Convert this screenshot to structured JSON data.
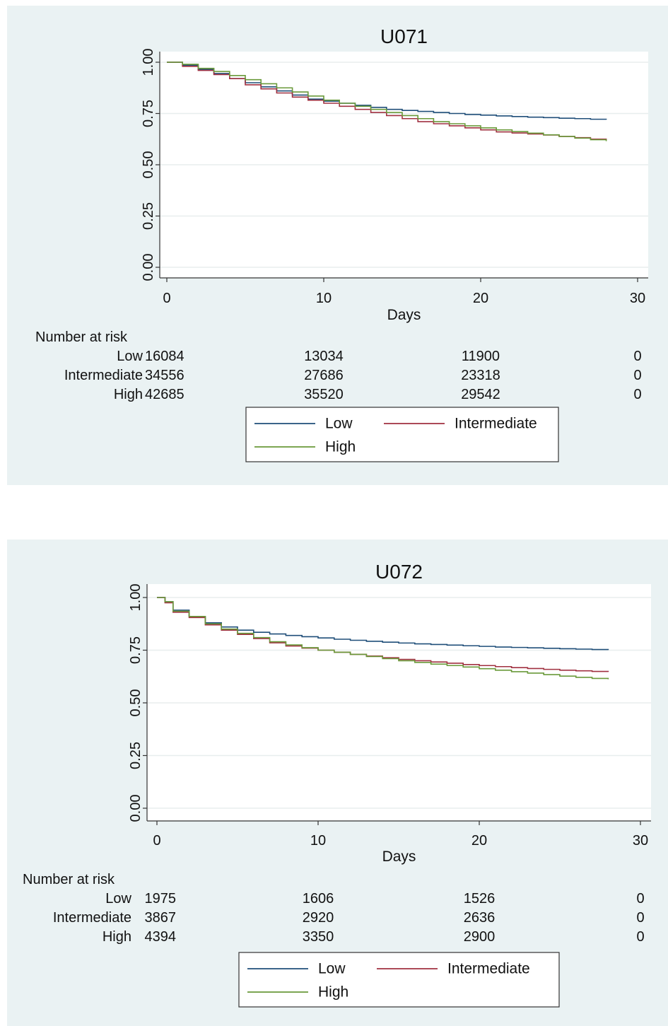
{
  "chart_data": [
    {
      "type": "line",
      "title": "U071",
      "xlabel": "Days",
      "ylabel": "",
      "xlim": [
        0,
        30
      ],
      "ylim": [
        0,
        1
      ],
      "x_ticks": [
        "0",
        "10",
        "20",
        "30"
      ],
      "y_ticks": [
        "0.00",
        "0.25",
        "0.50",
        "0.75",
        "1.00"
      ],
      "grid": true,
      "risk_table": {
        "label": "Number at risk",
        "rows": [
          {
            "name": "Low",
            "values": [
              "16084",
              "13034",
              "11900",
              "0"
            ]
          },
          {
            "name": "Intermediate",
            "values": [
              "34556",
              "27686",
              "23318",
              "0"
            ]
          },
          {
            "name": "High",
            "values": [
              "42685",
              "35520",
              "29542",
              "0"
            ]
          }
        ]
      },
      "legend": {
        "position": "bottom",
        "items": [
          "Low",
          "Intermediate",
          "High"
        ]
      },
      "series": [
        {
          "name": "Low",
          "color": "#1f4e79",
          "x": [
            0,
            1,
            2,
            3,
            4,
            5,
            6,
            7,
            8,
            9,
            10,
            11,
            12,
            13,
            14,
            15,
            16,
            17,
            18,
            19,
            20,
            21,
            22,
            23,
            24,
            25,
            26,
            27,
            28
          ],
          "y": [
            1.0,
            0.985,
            0.965,
            0.945,
            0.92,
            0.9,
            0.88,
            0.86,
            0.84,
            0.82,
            0.81,
            0.8,
            0.79,
            0.78,
            0.77,
            0.765,
            0.76,
            0.755,
            0.75,
            0.745,
            0.742,
            0.738,
            0.735,
            0.732,
            0.73,
            0.727,
            0.725,
            0.722,
            0.72
          ]
        },
        {
          "name": "Intermediate",
          "color": "#a03040",
          "x": [
            0,
            1,
            2,
            3,
            4,
            5,
            6,
            7,
            8,
            9,
            10,
            11,
            12,
            13,
            14,
            15,
            16,
            17,
            18,
            19,
            20,
            21,
            22,
            23,
            24,
            25,
            26,
            27,
            28
          ],
          "y": [
            1.0,
            0.98,
            0.96,
            0.94,
            0.92,
            0.89,
            0.87,
            0.85,
            0.83,
            0.815,
            0.8,
            0.785,
            0.77,
            0.755,
            0.74,
            0.725,
            0.71,
            0.7,
            0.69,
            0.68,
            0.67,
            0.66,
            0.655,
            0.65,
            0.645,
            0.638,
            0.632,
            0.625,
            0.62
          ]
        },
        {
          "name": "High",
          "color": "#6a9a3a",
          "x": [
            0,
            1,
            2,
            3,
            4,
            5,
            6,
            7,
            8,
            9,
            10,
            11,
            12,
            13,
            14,
            15,
            16,
            17,
            18,
            19,
            20,
            21,
            22,
            23,
            24,
            25,
            26,
            27,
            28
          ],
          "y": [
            1.0,
            0.99,
            0.97,
            0.955,
            0.935,
            0.915,
            0.895,
            0.875,
            0.855,
            0.835,
            0.815,
            0.8,
            0.785,
            0.77,
            0.755,
            0.74,
            0.725,
            0.71,
            0.7,
            0.69,
            0.68,
            0.67,
            0.662,
            0.654,
            0.646,
            0.638,
            0.63,
            0.622,
            0.615
          ]
        }
      ]
    },
    {
      "type": "line",
      "title": "U072",
      "xlabel": "Days",
      "ylabel": "",
      "xlim": [
        0,
        30
      ],
      "ylim": [
        0,
        1
      ],
      "x_ticks": [
        "0",
        "10",
        "20",
        "30"
      ],
      "y_ticks": [
        "0.00",
        "0.25",
        "0.50",
        "0.75",
        "1.00"
      ],
      "grid": true,
      "risk_table": {
        "label": "Number at risk",
        "rows": [
          {
            "name": "Low",
            "values": [
              "1975",
              "1606",
              "1526",
              "0"
            ]
          },
          {
            "name": "Intermediate",
            "values": [
              "3867",
              "2920",
              "2636",
              "0"
            ]
          },
          {
            "name": "High",
            "values": [
              "4394",
              "3350",
              "2900",
              "0"
            ]
          }
        ]
      },
      "legend": {
        "position": "bottom",
        "items": [
          "Low",
          "Intermediate",
          "High"
        ]
      },
      "series": [
        {
          "name": "Low",
          "color": "#1f4e79",
          "x": [
            0,
            0.5,
            1,
            2,
            3,
            4,
            5,
            6,
            7,
            8,
            9,
            10,
            11,
            12,
            13,
            14,
            15,
            16,
            17,
            18,
            19,
            20,
            21,
            22,
            23,
            24,
            25,
            26,
            27,
            28
          ],
          "y": [
            1.0,
            0.98,
            0.94,
            0.91,
            0.88,
            0.86,
            0.845,
            0.835,
            0.827,
            0.82,
            0.814,
            0.808,
            0.802,
            0.797,
            0.792,
            0.788,
            0.784,
            0.78,
            0.777,
            0.774,
            0.771,
            0.768,
            0.765,
            0.763,
            0.761,
            0.759,
            0.757,
            0.755,
            0.753,
            0.751
          ]
        },
        {
          "name": "Intermediate",
          "color": "#a03040",
          "x": [
            0,
            0.5,
            1,
            2,
            3,
            4,
            5,
            6,
            7,
            8,
            9,
            10,
            11,
            12,
            13,
            14,
            15,
            16,
            17,
            18,
            19,
            20,
            21,
            22,
            23,
            24,
            25,
            26,
            27,
            28
          ],
          "y": [
            1.0,
            0.975,
            0.93,
            0.905,
            0.87,
            0.845,
            0.825,
            0.805,
            0.785,
            0.77,
            0.76,
            0.75,
            0.74,
            0.73,
            0.722,
            0.714,
            0.706,
            0.7,
            0.694,
            0.688,
            0.682,
            0.677,
            0.672,
            0.667,
            0.663,
            0.659,
            0.655,
            0.652,
            0.649,
            0.647
          ]
        },
        {
          "name": "High",
          "color": "#6a9a3a",
          "x": [
            0,
            0.5,
            1,
            2,
            3,
            4,
            5,
            6,
            7,
            8,
            9,
            10,
            11,
            12,
            13,
            14,
            15,
            16,
            17,
            18,
            19,
            20,
            21,
            22,
            23,
            24,
            25,
            26,
            27,
            28
          ],
          "y": [
            1.0,
            0.98,
            0.935,
            0.91,
            0.875,
            0.85,
            0.83,
            0.81,
            0.79,
            0.775,
            0.762,
            0.75,
            0.74,
            0.73,
            0.72,
            0.71,
            0.7,
            0.692,
            0.684,
            0.677,
            0.67,
            0.662,
            0.655,
            0.648,
            0.641,
            0.634,
            0.627,
            0.621,
            0.616,
            0.612
          ]
        }
      ]
    }
  ]
}
